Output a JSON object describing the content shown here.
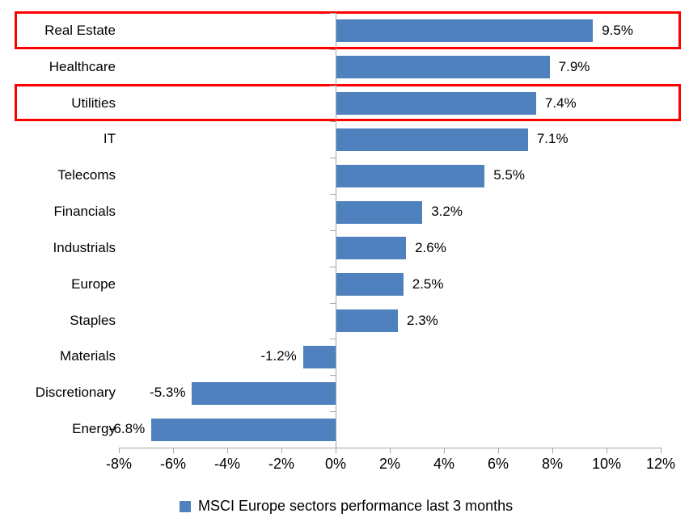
{
  "chart_data": {
    "type": "bar",
    "orientation": "horizontal",
    "categories": [
      "Real Estate",
      "Healthcare",
      "Utilities",
      "IT",
      "Telecoms",
      "Financials",
      "Industrials",
      "Europe",
      "Staples",
      "Materials",
      "Discretionary",
      "Energy"
    ],
    "values": [
      9.5,
      7.9,
      7.4,
      7.1,
      5.5,
      3.2,
      2.6,
      2.5,
      2.3,
      -1.2,
      -5.3,
      -6.8
    ],
    "data_labels": [
      "9.5%",
      "7.9%",
      "7.4%",
      "7.1%",
      "5.5%",
      "3.2%",
      "2.6%",
      "2.5%",
      "2.3%",
      "-1.2%",
      "-5.3%",
      "-6.8%"
    ],
    "x_axis": {
      "min": -8,
      "max": 12,
      "tick_step": 2,
      "tick_labels": [
        "-8%",
        "-6%",
        "-4%",
        "-2%",
        "0%",
        "2%",
        "4%",
        "6%",
        "8%",
        "10%",
        "12%"
      ]
    },
    "legend": {
      "label": "MSCI Europe sectors performance last 3 months",
      "position": "bottom"
    },
    "grid": false,
    "series_color": "#4e81bd",
    "axis_color": "#a6a6a6",
    "highlight_color": "#fe0000",
    "highlighted_categories": [
      "Real Estate",
      "Utilities"
    ]
  }
}
